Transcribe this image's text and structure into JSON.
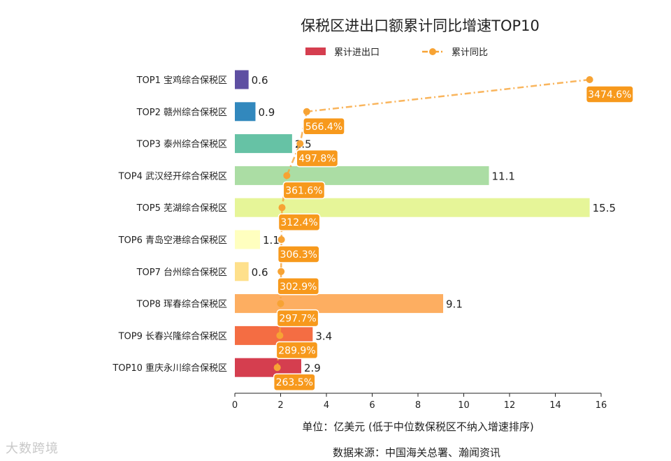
{
  "chart_data": {
    "type": "bar",
    "title": "保税区进出口额累计同比增速TOP10",
    "categories": [
      "TOP1 宝鸡综合保税区",
      "TOP2 赣州综合保税区",
      "TOP3 泰州综合保税区",
      "TOP4 武汉经开综合保税区",
      "TOP5 芜湖综合保税区",
      "TOP6 青岛空港综合保税区",
      "TOP7 台州综合保税区",
      "TOP8 珲春综合保税区",
      "TOP9 长春兴隆综合保税区",
      "TOP10 重庆永川综合保税区"
    ],
    "series": [
      {
        "name": "累计进出口",
        "type": "bar",
        "unit": "亿美元",
        "values": [
          0.6,
          0.9,
          2.5,
          11.1,
          15.5,
          1.1,
          0.6,
          9.1,
          3.4,
          2.9
        ],
        "labels": [
          "0.6",
          "0.9",
          "2.5",
          "11.1",
          "15.5",
          "1.1",
          "0.6",
          "9.1",
          "3.4",
          "2.9"
        ]
      },
      {
        "name": "累计同比",
        "type": "line",
        "unit": "%",
        "values": [
          3474.6,
          566.4,
          497.8,
          361.6,
          312.4,
          306.3,
          302.9,
          297.7,
          289.9,
          263.5
        ],
        "labels": [
          "3474.6%",
          "566.4%",
          "497.8%",
          "361.6%",
          "312.4%",
          "306.3%",
          "302.9%",
          "297.7%",
          "289.9%",
          "263.5%"
        ],
        "color": "#f7a334"
      }
    ],
    "bar_colors": [
      "#5e4fa2",
      "#3288bd",
      "#66c2a5",
      "#abdda4",
      "#e6f598",
      "#ffffbf",
      "#fee08b",
      "#fdae61",
      "#f46d43",
      "#d53e4f"
    ],
    "xlim": [
      0,
      16
    ],
    "xticks": [
      "0",
      "2",
      "4",
      "6",
      "8",
      "10",
      "12",
      "14",
      "16"
    ],
    "xlabel": "单位：亿美元 (低于中位数保税区不纳入增速排序)",
    "source": "数据来源：中国海关总署、瀚闻资讯",
    "legend_position": "top-center"
  },
  "watermark": "大数跨境"
}
